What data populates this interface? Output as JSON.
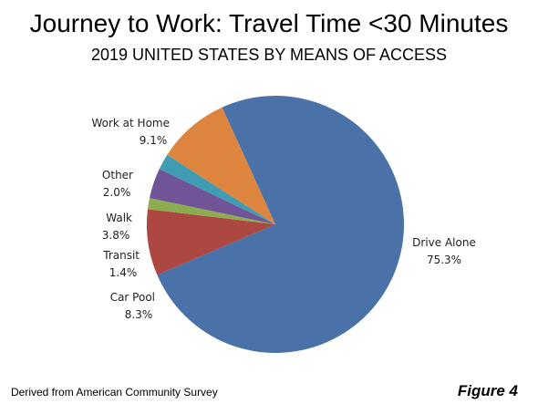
{
  "title": "Journey to Work: Travel Time <30 Minutes",
  "subtitle": "2019 UNITED STATES BY MEANS OF ACCESS",
  "source": "Derived from American Community Survey",
  "figure_label": "Figure 4",
  "chart_data": {
    "type": "pie",
    "title": "Journey to Work: Travel Time <30 Minutes",
    "subtitle": "2019 UNITED STATES BY MEANS OF ACCESS",
    "slices": [
      {
        "label": "Drive Alone",
        "value": 75.3,
        "display": "75.3%",
        "color": "#4a71a8"
      },
      {
        "label": "Car Pool",
        "value": 8.3,
        "display": "8.3%",
        "color": "#ac4741"
      },
      {
        "label": "Transit",
        "value": 1.4,
        "display": "1.4%",
        "color": "#8cac4f"
      },
      {
        "label": "Walk",
        "value": 3.8,
        "display": "3.8%",
        "color": "#6f5498"
      },
      {
        "label": "Other",
        "value": 2.0,
        "display": "2.0%",
        "color": "#3f9cb2"
      },
      {
        "label": "Work at Home",
        "value": 9.1,
        "display": "9.1%",
        "color": "#dd853f"
      }
    ]
  }
}
